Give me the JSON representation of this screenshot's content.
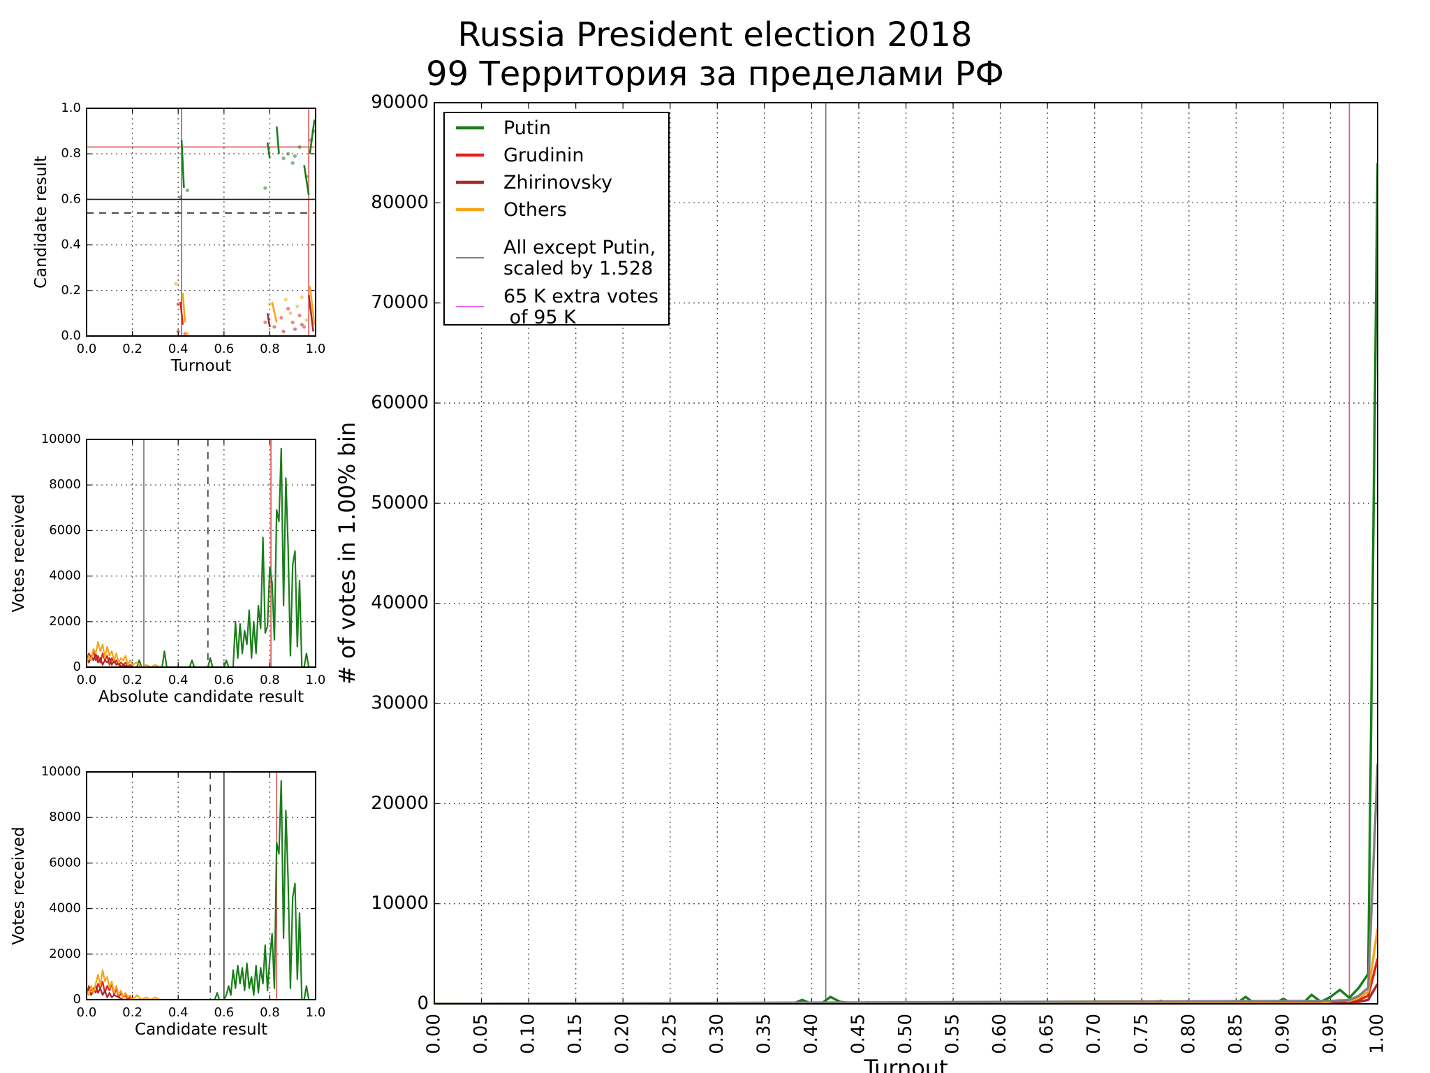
{
  "page": {
    "title_line1": "Russia President election 2018",
    "title_line2": "99 Территория за пределами РФ"
  },
  "colors": {
    "putin": "#1a7f1a",
    "grudinin": "#e8201a",
    "zhirinovsky": "#a52a2a",
    "others": "#f5a51a",
    "all_except": "#808080",
    "extra": "#ee66ee",
    "red_line": "#e05050",
    "grid": "#555555"
  },
  "chart_data": [
    {
      "id": "main",
      "type": "line",
      "xlabel": "Turnout",
      "ylabel": "# of votes in 1.00% bin",
      "xlim": [
        0.0,
        1.0
      ],
      "ylim": [
        0,
        90000
      ],
      "xticks": [
        "0.00",
        "0.05",
        "0.10",
        "0.15",
        "0.20",
        "0.25",
        "0.30",
        "0.35",
        "0.40",
        "0.45",
        "0.50",
        "0.55",
        "0.60",
        "0.65",
        "0.70",
        "0.75",
        "0.80",
        "0.85",
        "0.90",
        "0.95",
        "1.00"
      ],
      "yticks": [
        "0",
        "10000",
        "20000",
        "30000",
        "40000",
        "50000",
        "60000",
        "70000",
        "80000",
        "90000"
      ],
      "grid": true,
      "legend_position": "top-left",
      "legend": [
        "Putin",
        "Grudinin",
        "Zhirinovsky",
        "Others",
        "All except Putin,\nscaled by 1.528",
        "65 K extra votes\n of 95 K"
      ],
      "vlines": [
        {
          "x": 0.415,
          "color": "gray"
        },
        {
          "x": 0.97,
          "color": "red"
        }
      ],
      "series": [
        {
          "name": "Putin",
          "color": "putin",
          "x": [
            0.0,
            0.38,
            0.39,
            0.4,
            0.41,
            0.42,
            0.43,
            0.45,
            0.46,
            0.47,
            0.76,
            0.77,
            0.78,
            0.79,
            0.8,
            0.81,
            0.84,
            0.85,
            0.86,
            0.87,
            0.89,
            0.9,
            0.91,
            0.92,
            0.93,
            0.94,
            0.95,
            0.96,
            0.97,
            0.98,
            0.99,
            1.0
          ],
          "y": [
            0,
            0,
            400,
            0,
            0,
            700,
            200,
            0,
            150,
            0,
            0,
            300,
            0,
            200,
            150,
            0,
            200,
            0,
            700,
            0,
            0,
            500,
            0,
            0,
            900,
            200,
            700,
            1400,
            600,
            1600,
            3000,
            84000
          ]
        },
        {
          "name": "Grudinin",
          "color": "grudinin",
          "x": [
            0.0,
            0.94,
            0.95,
            0.96,
            0.97,
            0.98,
            0.99,
            1.0
          ],
          "y": [
            0,
            0,
            150,
            300,
            200,
            400,
            800,
            4500
          ]
        },
        {
          "name": "Zhirinovsky",
          "color": "zhirinovsky",
          "x": [
            0.0,
            0.95,
            0.96,
            0.97,
            0.98,
            0.99,
            1.0
          ],
          "y": [
            0,
            100,
            150,
            100,
            200,
            400,
            2000
          ]
        },
        {
          "name": "Others",
          "color": "others",
          "x": [
            0.0,
            0.94,
            0.95,
            0.96,
            0.97,
            0.98,
            0.99,
            1.0
          ],
          "y": [
            0,
            0,
            250,
            400,
            300,
            600,
            1200,
            7500
          ]
        },
        {
          "name": "All except Putin, scaled by 1.528",
          "color": "all_except",
          "x": [
            0.0,
            0.96,
            0.97,
            0.98,
            0.99,
            1.0
          ],
          "y": [
            0,
            300,
            400,
            800,
            1600,
            24000
          ]
        }
      ]
    },
    {
      "id": "scatter",
      "type": "scatter",
      "xlabel": "Turnout",
      "ylabel": "Candidate result",
      "xlim": [
        0.0,
        1.0
      ],
      "ylim": [
        0.0,
        1.0
      ],
      "xticks": [
        "0.0",
        "0.2",
        "0.4",
        "0.6",
        "0.8",
        "1.0"
      ],
      "yticks": [
        "0.0",
        "0.2",
        "0.4",
        "0.6",
        "0.8",
        "1.0"
      ],
      "grid": true,
      "hlines": [
        {
          "y": 0.83,
          "color": "red",
          "style": "solid"
        },
        {
          "y": 0.6,
          "color": "black",
          "style": "solid"
        },
        {
          "y": 0.54,
          "color": "black",
          "style": "dashed"
        }
      ],
      "vlines": [
        {
          "x": 0.415,
          "color": "gray"
        },
        {
          "x": 0.97,
          "color": "red"
        }
      ],
      "segments": [
        {
          "color": "putin",
          "x": [
            0.415,
            0.425
          ],
          "y": [
            0.86,
            0.65
          ]
        },
        {
          "color": "putin",
          "x": [
            0.79,
            0.8
          ],
          "y": [
            0.85,
            0.78
          ]
        },
        {
          "color": "putin",
          "x": [
            0.83,
            0.84
          ],
          "y": [
            0.92,
            0.8
          ]
        },
        {
          "color": "putin",
          "x": [
            0.95,
            0.97
          ],
          "y": [
            0.75,
            0.62
          ]
        },
        {
          "color": "putin",
          "x": [
            0.975,
            0.995
          ],
          "y": [
            0.8,
            0.95
          ]
        },
        {
          "color": "grudinin",
          "x": [
            0.41,
            0.42
          ],
          "y": [
            0.15,
            0.05
          ]
        },
        {
          "color": "others",
          "x": [
            0.42,
            0.43
          ],
          "y": [
            0.19,
            0.06
          ]
        },
        {
          "color": "zhirinovsky",
          "x": [
            0.79,
            0.8
          ],
          "y": [
            0.1,
            0.04
          ]
        },
        {
          "color": "others",
          "x": [
            0.81,
            0.83
          ],
          "y": [
            0.15,
            0.06
          ]
        },
        {
          "color": "zhirinovsky",
          "x": [
            0.97,
            0.99
          ],
          "y": [
            0.18,
            0.02
          ]
        },
        {
          "color": "others",
          "x": [
            0.975,
            0.995
          ],
          "y": [
            0.22,
            0.05
          ]
        }
      ],
      "points": [
        {
          "color": "putin",
          "x": [
            0.41,
            0.44,
            0.78,
            0.86,
            0.88,
            0.9,
            0.91,
            0.93,
            0.96,
            0.98,
            0.99
          ],
          "y": [
            0.61,
            0.64,
            0.65,
            0.78,
            0.8,
            0.76,
            0.79,
            0.83,
            0.7,
            0.86,
            0.9
          ]
        },
        {
          "color": "grudinin",
          "x": [
            0.4,
            0.43,
            0.78,
            0.85,
            0.88,
            0.9,
            0.93,
            0.95
          ],
          "y": [
            0.14,
            0.01,
            0.06,
            0.08,
            0.12,
            0.06,
            0.09,
            0.04
          ]
        },
        {
          "color": "others",
          "x": [
            0.39,
            0.44,
            0.8,
            0.87,
            0.89,
            0.92,
            0.94,
            0.96
          ],
          "y": [
            0.23,
            0.01,
            0.14,
            0.16,
            0.1,
            0.13,
            0.17,
            0.07
          ]
        },
        {
          "color": "zhirinovsky",
          "x": [
            0.4,
            0.82,
            0.86,
            0.91,
            0.94
          ],
          "y": [
            0.02,
            0.04,
            0.02,
            0.03,
            0.05
          ]
        }
      ]
    },
    {
      "id": "absolute",
      "type": "line",
      "xlabel": "Absolute candidate result",
      "ylabel": "Votes received",
      "xlim": [
        0.0,
        1.0
      ],
      "ylim": [
        0,
        10000
      ],
      "xticks": [
        "0.0",
        "0.2",
        "0.4",
        "0.6",
        "0.8",
        "1.0"
      ],
      "yticks": [
        "0",
        "2000",
        "4000",
        "6000",
        "8000",
        "10000"
      ],
      "grid": true,
      "vlines": [
        {
          "x": 0.25,
          "color": "gray",
          "style": "solid"
        },
        {
          "x": 0.53,
          "color": "black",
          "style": "dashed"
        },
        {
          "x": 0.805,
          "color": "red",
          "style": "solid"
        }
      ],
      "series": [
        {
          "name": "Putin",
          "color": "putin",
          "x": [
            0.0,
            0.22,
            0.23,
            0.24,
            0.25,
            0.33,
            0.34,
            0.35,
            0.45,
            0.46,
            0.47,
            0.53,
            0.54,
            0.55,
            0.6,
            0.61,
            0.62,
            0.64,
            0.65,
            0.66,
            0.67,
            0.68,
            0.69,
            0.7,
            0.71,
            0.72,
            0.73,
            0.74,
            0.75,
            0.76,
            0.77,
            0.78,
            0.79,
            0.8,
            0.81,
            0.82,
            0.83,
            0.84,
            0.85,
            0.86,
            0.87,
            0.88,
            0.89,
            0.9,
            0.91,
            0.92,
            0.93,
            0.94,
            0.95,
            0.96,
            0.97,
            1.0
          ],
          "y": [
            0,
            0,
            300,
            0,
            0,
            0,
            700,
            0,
            0,
            300,
            0,
            0,
            400,
            0,
            0,
            300,
            0,
            0,
            2000,
            400,
            1900,
            600,
            1600,
            1000,
            2500,
            400,
            2000,
            600,
            2700,
            1700,
            5700,
            1500,
            1800,
            4400,
            3700,
            1200,
            6900,
            6400,
            9600,
            2700,
            8300,
            5300,
            500,
            4500,
            5100,
            900,
            3800,
            0,
            0,
            600,
            0,
            0
          ]
        },
        {
          "name": "Grudinin",
          "color": "grudinin",
          "x": [
            0.0,
            0.01,
            0.02,
            0.03,
            0.04,
            0.05,
            0.06,
            0.07,
            0.08,
            0.09,
            0.1,
            0.11,
            0.12,
            0.13,
            0.14,
            0.15,
            0.16,
            0.17,
            0.18,
            0.19,
            0.2,
            0.22,
            0.25
          ],
          "y": [
            300,
            600,
            400,
            700,
            300,
            500,
            200,
            600,
            300,
            500,
            100,
            400,
            200,
            300,
            100,
            200,
            100,
            200,
            0,
            100,
            0,
            0,
            0
          ]
        },
        {
          "name": "Zhirinovsky",
          "color": "zhirinovsky",
          "x": [
            0.0,
            0.01,
            0.02,
            0.03,
            0.04,
            0.05,
            0.06,
            0.07,
            0.08,
            0.09,
            0.1,
            0.11,
            0.12,
            0.13,
            0.14,
            0.15,
            0.16,
            0.18,
            0.2
          ],
          "y": [
            400,
            200,
            500,
            300,
            600,
            200,
            400,
            100,
            300,
            200,
            400,
            100,
            300,
            100,
            200,
            0,
            100,
            0,
            0
          ]
        },
        {
          "name": "Others",
          "color": "others",
          "x": [
            0.0,
            0.01,
            0.02,
            0.03,
            0.04,
            0.05,
            0.06,
            0.07,
            0.08,
            0.09,
            0.1,
            0.11,
            0.12,
            0.13,
            0.14,
            0.15,
            0.16,
            0.17,
            0.18,
            0.19,
            0.2,
            0.22,
            0.24,
            0.26,
            0.28,
            0.3,
            0.32
          ],
          "y": [
            200,
            500,
            300,
            800,
            600,
            1100,
            700,
            1000,
            400,
            900,
            500,
            700,
            300,
            600,
            200,
            400,
            300,
            500,
            100,
            300,
            100,
            200,
            0,
            100,
            0,
            100,
            0
          ]
        }
      ]
    },
    {
      "id": "relative",
      "type": "line",
      "xlabel": "Candidate result",
      "ylabel": "Votes received",
      "xlim": [
        0.0,
        1.0
      ],
      "ylim": [
        0,
        10000
      ],
      "xticks": [
        "0.0",
        "0.2",
        "0.4",
        "0.6",
        "0.8",
        "1.0"
      ],
      "yticks": [
        "0",
        "2000",
        "4000",
        "6000",
        "8000",
        "10000"
      ],
      "grid": true,
      "vlines": [
        {
          "x": 0.54,
          "color": "black",
          "style": "dashed"
        },
        {
          "x": 0.6,
          "color": "black",
          "style": "solid"
        },
        {
          "x": 0.83,
          "color": "red",
          "style": "solid"
        }
      ],
      "series": [
        {
          "name": "Putin",
          "color": "putin",
          "x": [
            0.0,
            0.56,
            0.57,
            0.58,
            0.6,
            0.61,
            0.62,
            0.63,
            0.64,
            0.65,
            0.66,
            0.67,
            0.68,
            0.69,
            0.7,
            0.71,
            0.72,
            0.73,
            0.74,
            0.75,
            0.76,
            0.77,
            0.78,
            0.79,
            0.8,
            0.81,
            0.82,
            0.83,
            0.84,
            0.85,
            0.86,
            0.87,
            0.88,
            0.89,
            0.9,
            0.91,
            0.92,
            0.93,
            0.94,
            0.95,
            0.96,
            0.97,
            1.0
          ],
          "y": [
            0,
            0,
            300,
            0,
            0,
            200,
            600,
            200,
            1300,
            500,
            1500,
            700,
            1400,
            400,
            1600,
            500,
            1000,
            200,
            1500,
            300,
            1400,
            700,
            2400,
            400,
            1800,
            2900,
            500,
            6900,
            6400,
            9600,
            2700,
            8300,
            5300,
            500,
            4500,
            5100,
            900,
            3800,
            0,
            0,
            600,
            0,
            0
          ]
        },
        {
          "name": "Grudinin",
          "color": "grudinin",
          "x": [
            0.0,
            0.01,
            0.02,
            0.03,
            0.04,
            0.05,
            0.06,
            0.07,
            0.08,
            0.09,
            0.1,
            0.11,
            0.12,
            0.13,
            0.14,
            0.15,
            0.16,
            0.17,
            0.18,
            0.19,
            0.2,
            0.22,
            0.25
          ],
          "y": [
            200,
            600,
            400,
            500,
            300,
            700,
            500,
            800,
            300,
            600,
            400,
            700,
            200,
            500,
            100,
            300,
            100,
            200,
            0,
            100,
            0,
            0,
            0
          ]
        },
        {
          "name": "Zhirinovsky",
          "color": "zhirinovsky",
          "x": [
            0.0,
            0.01,
            0.02,
            0.03,
            0.04,
            0.05,
            0.06,
            0.07,
            0.08,
            0.09,
            0.1,
            0.11,
            0.12,
            0.14,
            0.16,
            0.18
          ],
          "y": [
            300,
            500,
            200,
            400,
            600,
            300,
            500,
            200,
            400,
            100,
            300,
            100,
            200,
            100,
            0,
            0
          ]
        },
        {
          "name": "Others",
          "color": "others",
          "x": [
            0.0,
            0.01,
            0.02,
            0.03,
            0.04,
            0.05,
            0.06,
            0.07,
            0.08,
            0.09,
            0.1,
            0.11,
            0.12,
            0.13,
            0.14,
            0.15,
            0.16,
            0.17,
            0.18,
            0.19,
            0.2,
            0.22,
            0.24,
            0.26,
            0.28,
            0.3,
            0.32
          ],
          "y": [
            400,
            200,
            600,
            300,
            700,
            1100,
            600,
            1300,
            800,
            1000,
            500,
            800,
            300,
            600,
            200,
            400,
            100,
            300,
            100,
            200,
            0,
            200,
            0,
            100,
            0,
            100,
            0
          ]
        }
      ]
    }
  ]
}
